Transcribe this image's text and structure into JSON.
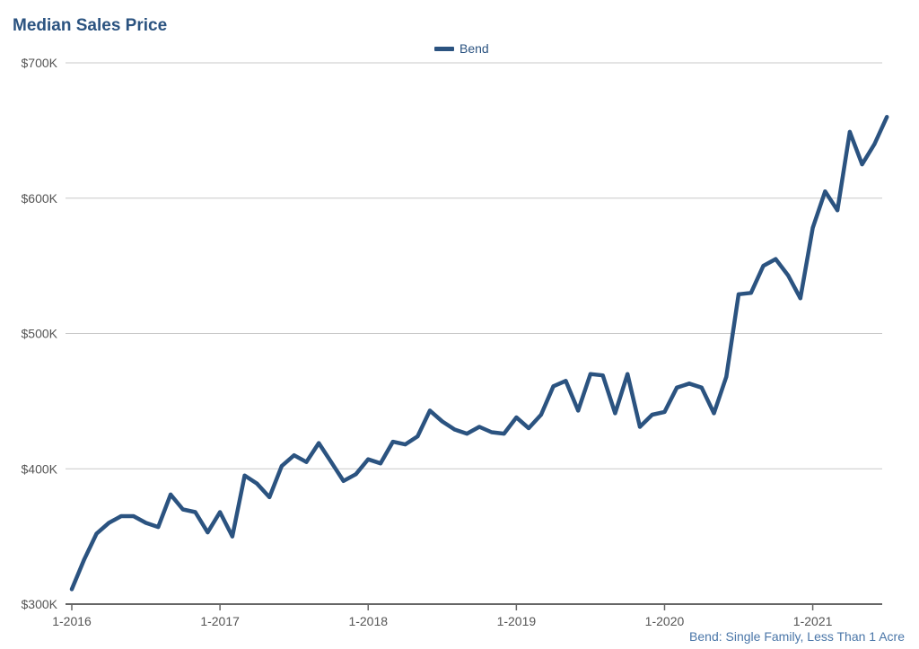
{
  "chart_data": {
    "type": "line",
    "title": "Median Sales Price",
    "legend": {
      "position": "top-center",
      "entries": [
        "Bend"
      ]
    },
    "source_note": "Bend: Single Family, Less Than 1 Acre",
    "x_ticks": [
      "1-2016",
      "1-2017",
      "1-2018",
      "1-2019",
      "1-2020",
      "1-2021"
    ],
    "y_ticks": [
      {
        "value": 300000,
        "label": "$300K"
      },
      {
        "value": 400000,
        "label": "$400K"
      },
      {
        "value": 500000,
        "label": "$500K"
      },
      {
        "value": 600000,
        "label": "$600K"
      },
      {
        "value": 700000,
        "label": "$700K"
      }
    ],
    "ylim": [
      300000,
      700000
    ],
    "grid": true,
    "colors": {
      "series": "#2b5380",
      "grid": "#c8c8c8",
      "axis": "#666666"
    },
    "series": [
      {
        "name": "Bend",
        "x": [
          "1-2016",
          "2-2016",
          "3-2016",
          "4-2016",
          "5-2016",
          "6-2016",
          "7-2016",
          "8-2016",
          "9-2016",
          "10-2016",
          "11-2016",
          "12-2016",
          "1-2017",
          "2-2017",
          "3-2017",
          "4-2017",
          "5-2017",
          "6-2017",
          "7-2017",
          "8-2017",
          "9-2017",
          "10-2017",
          "11-2017",
          "12-2017",
          "1-2018",
          "2-2018",
          "3-2018",
          "4-2018",
          "5-2018",
          "6-2018",
          "7-2018",
          "8-2018",
          "9-2018",
          "10-2018",
          "11-2018",
          "12-2018",
          "1-2019",
          "2-2019",
          "3-2019",
          "4-2019",
          "5-2019",
          "6-2019",
          "7-2019",
          "8-2019",
          "9-2019",
          "10-2019",
          "11-2019",
          "12-2019",
          "1-2020",
          "2-2020",
          "3-2020",
          "4-2020",
          "5-2020",
          "6-2020",
          "7-2020",
          "8-2020",
          "9-2020",
          "10-2020",
          "11-2020",
          "12-2020",
          "1-2021",
          "2-2021",
          "3-2021",
          "4-2021",
          "5-2021",
          "6-2021",
          "7-2021"
        ],
        "values": [
          311000,
          333000,
          352000,
          360000,
          365000,
          365000,
          360000,
          357000,
          381000,
          370000,
          368000,
          353000,
          368000,
          350000,
          395000,
          389000,
          379000,
          402000,
          410000,
          405000,
          419000,
          405000,
          391000,
          396000,
          407000,
          404000,
          420000,
          418000,
          424000,
          443000,
          435000,
          429000,
          426000,
          431000,
          427000,
          426000,
          438000,
          430000,
          440000,
          461000,
          465000,
          443000,
          470000,
          469000,
          441000,
          470000,
          431000,
          440000,
          442000,
          460000,
          463000,
          460000,
          441000,
          468000,
          529000,
          530000,
          550000,
          555000,
          543000,
          526000,
          578000,
          605000,
          591000,
          649000,
          625000,
          640000,
          660000
        ]
      }
    ]
  }
}
